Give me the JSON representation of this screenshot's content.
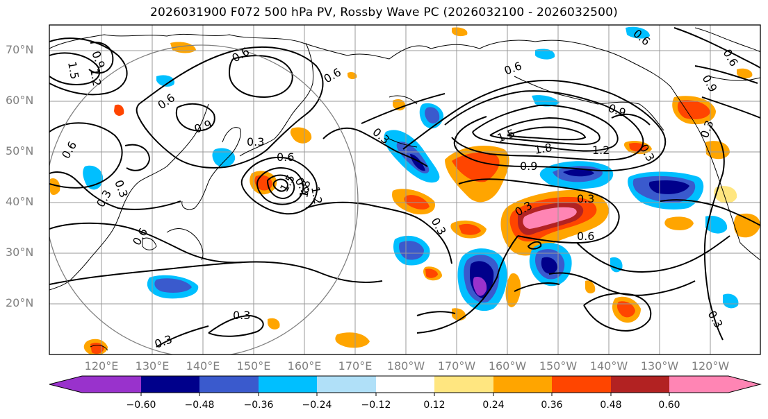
{
  "title": "2026031900 F072 500 hPa PV, Rossby Wave PC (2026032100 - 2026032500)",
  "latitude_labels": [
    "70°N",
    "60°N",
    "50°N",
    "40°N",
    "30°N",
    "20°N"
  ],
  "longitude_labels": [
    "120°E",
    "130°E",
    "140°E",
    "150°E",
    "160°E",
    "170°E",
    "180°W",
    "170°W",
    "160°W",
    "150°W",
    "140°W",
    "130°W",
    "120°W"
  ],
  "contour_labels": [
    "0.9",
    "1.2",
    "1.5",
    "0.6",
    "0.6",
    "0.6",
    "0.9",
    "0.3",
    "0.6",
    "0.3",
    "0.6",
    "0.9",
    "1.2",
    "1.5",
    "1.8",
    "0.3",
    "0.3",
    "0.6",
    "0.6",
    "0.3",
    "0.9",
    "0.3",
    "1.5",
    "1.8",
    "1.2",
    "0.9",
    "0.3",
    "0.3",
    "0.6",
    "0.3",
    "0.3",
    "0.3",
    "0.9",
    "0.6",
    "0.3",
    "0.6"
  ],
  "colorbar": {
    "tick_labels": [
      "−0.60",
      "−0.48",
      "−0.36",
      "−0.24",
      "−0.12",
      "0.12",
      "0.24",
      "0.36",
      "0.48",
      "0.60"
    ],
    "colors": [
      "#9932cc",
      "#00008b",
      "#3a5acd",
      "#00bfff",
      "#b0e0f8",
      "#ffffff",
      "#ffe680",
      "#ffa500",
      "#ff4500",
      "#b22222",
      "#ff85b4"
    ]
  }
}
